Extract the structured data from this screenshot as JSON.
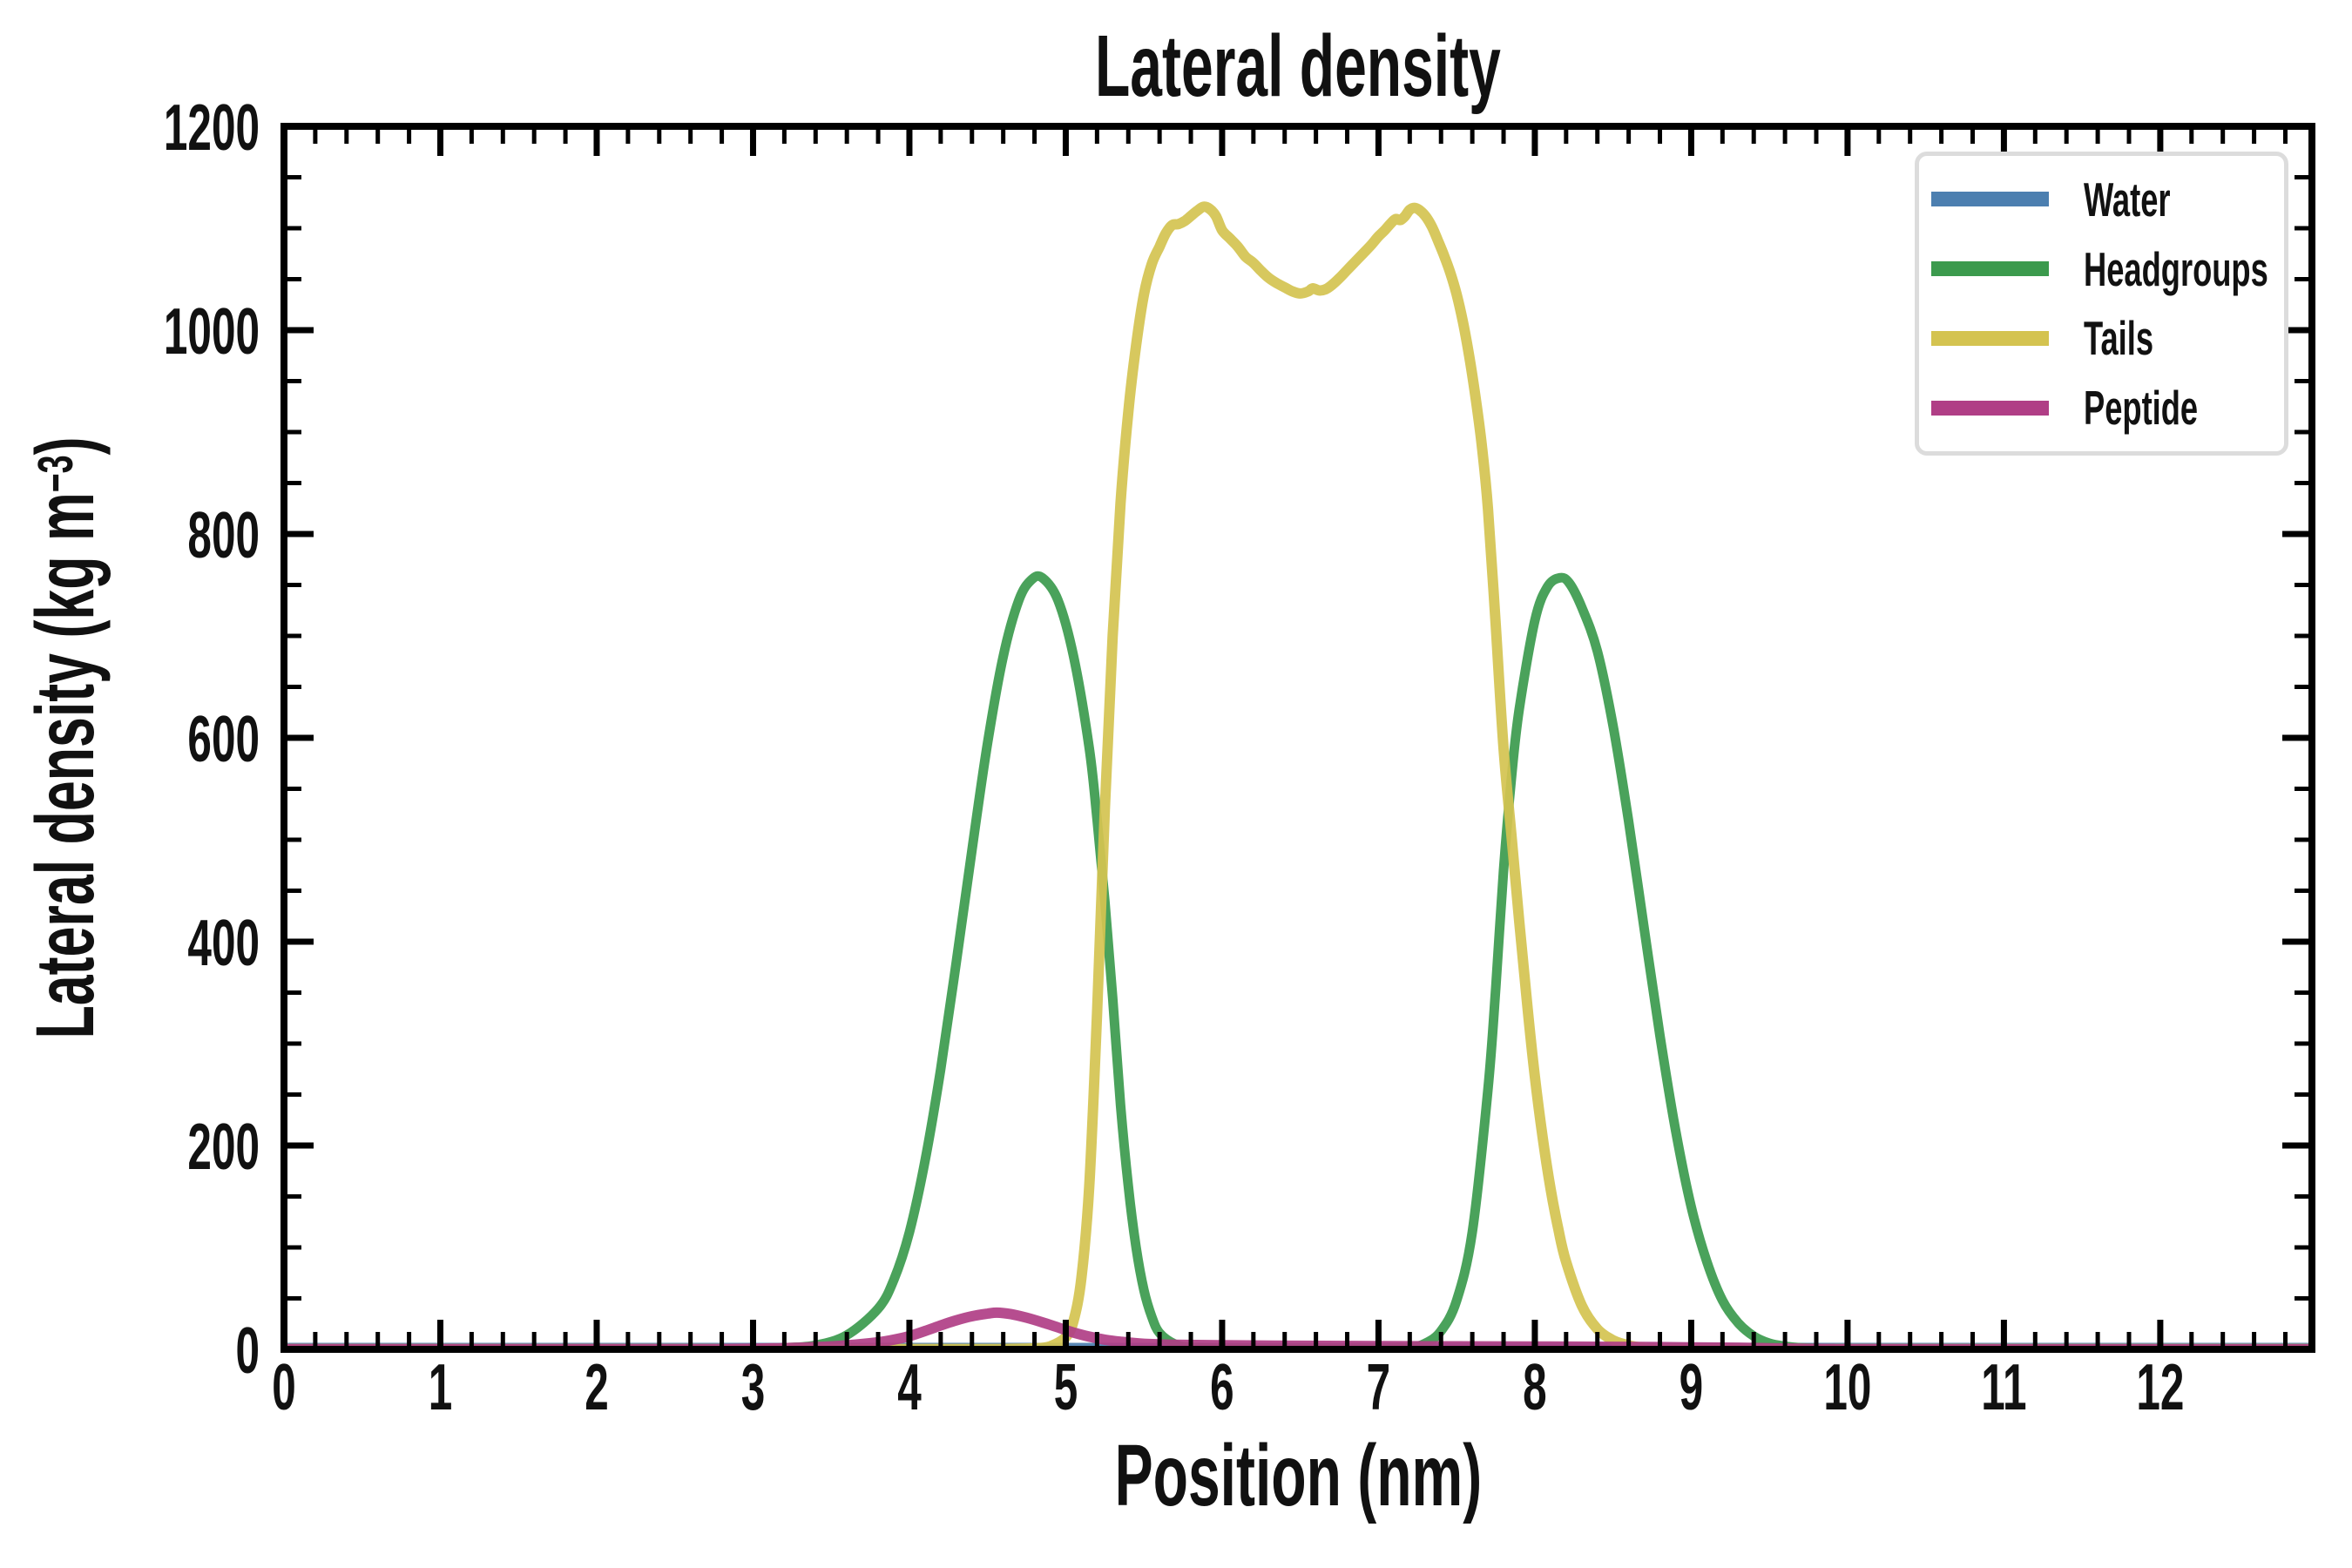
{
  "title": "Lateral density",
  "axes": {
    "xlabel": "Position (nm)",
    "ylabel": "Lateral density (kg m⁻³)",
    "ylabel_parts": {
      "pre": "Lateral density (kg m",
      "sup": "−3",
      "post": ")"
    },
    "x_ticks": [
      0,
      1,
      2,
      3,
      4,
      5,
      6,
      7,
      8,
      9,
      10,
      11,
      12
    ],
    "y_ticks": [
      0,
      200,
      400,
      600,
      800,
      1000,
      1200
    ],
    "x_minor_step": 0.2,
    "y_minor_step": 50,
    "xlim": [
      0,
      12.97
    ],
    "ylim": [
      0,
      1200
    ]
  },
  "legend": {
    "position": "upper right",
    "items": [
      {
        "label": "Water"
      },
      {
        "label": "Headgroups"
      },
      {
        "label": "Tails"
      },
      {
        "label": "Peptide"
      }
    ]
  },
  "chart_data": {
    "type": "line",
    "title": "Lateral density",
    "xlabel": "Position (nm)",
    "ylabel": "Lateral density (kg m⁻³)",
    "xlim": [
      0,
      12.97
    ],
    "ylim": [
      0,
      1200
    ],
    "grid": false,
    "legend_position": "upper right",
    "series": [
      {
        "name": "Water",
        "color": "#4C7FB0",
        "points": [
          [
            0,
            3
          ],
          [
            2,
            3
          ],
          [
            4,
            3
          ],
          [
            6,
            3
          ],
          [
            8,
            3
          ],
          [
            10,
            3
          ],
          [
            12,
            3
          ],
          [
            12.97,
            3
          ]
        ]
      },
      {
        "name": "Headgroups",
        "color": "#3B9A4D",
        "points": [
          [
            0,
            0.5
          ],
          [
            2.8,
            0.5
          ],
          [
            3.0,
            0.8
          ],
          [
            3.2,
            1.5
          ],
          [
            3.4,
            4
          ],
          [
            3.6,
            14
          ],
          [
            3.8,
            40
          ],
          [
            3.9,
            68
          ],
          [
            4.0,
            115
          ],
          [
            4.1,
            185
          ],
          [
            4.2,
            275
          ],
          [
            4.3,
            380
          ],
          [
            4.4,
            490
          ],
          [
            4.5,
            595
          ],
          [
            4.6,
            680
          ],
          [
            4.7,
            735
          ],
          [
            4.78,
            755
          ],
          [
            4.85,
            757
          ],
          [
            4.95,
            735
          ],
          [
            5.05,
            680
          ],
          [
            5.15,
            590
          ],
          [
            5.2,
            520
          ],
          [
            5.25,
            440
          ],
          [
            5.3,
            345
          ],
          [
            5.35,
            240
          ],
          [
            5.4,
            160
          ],
          [
            5.45,
            100
          ],
          [
            5.5,
            58
          ],
          [
            5.55,
            32
          ],
          [
            5.6,
            16
          ],
          [
            5.7,
            5
          ],
          [
            5.8,
            2
          ],
          [
            6.0,
            1
          ],
          [
            6.5,
            0.8
          ],
          [
            7.0,
            1
          ],
          [
            7.2,
            2
          ],
          [
            7.3,
            6
          ],
          [
            7.4,
            18
          ],
          [
            7.5,
            48
          ],
          [
            7.6,
            115
          ],
          [
            7.7,
            255
          ],
          [
            7.75,
            355
          ],
          [
            7.8,
            470
          ],
          [
            7.85,
            560
          ],
          [
            7.9,
            628
          ],
          [
            8.0,
            715
          ],
          [
            8.08,
            748
          ],
          [
            8.16,
            757
          ],
          [
            8.22,
            752
          ],
          [
            8.3,
            728
          ],
          [
            8.4,
            685
          ],
          [
            8.5,
            612
          ],
          [
            8.6,
            518
          ],
          [
            8.7,
            412
          ],
          [
            8.8,
            308
          ],
          [
            8.9,
            215
          ],
          [
            9.0,
            140
          ],
          [
            9.1,
            86
          ],
          [
            9.2,
            48
          ],
          [
            9.3,
            26
          ],
          [
            9.4,
            13
          ],
          [
            9.5,
            6
          ],
          [
            9.6,
            3
          ],
          [
            9.7,
            1.5
          ],
          [
            9.9,
            0.8
          ],
          [
            10.5,
            0.5
          ],
          [
            12.97,
            0.5
          ]
        ]
      },
      {
        "name": "Tails",
        "color": "#D4C350",
        "points": [
          [
            0,
            0.3
          ],
          [
            4.4,
            0.3
          ],
          [
            4.6,
            0.4
          ],
          [
            4.8,
            1
          ],
          [
            4.9,
            3
          ],
          [
            5.0,
            12
          ],
          [
            5.05,
            28
          ],
          [
            5.1,
            70
          ],
          [
            5.15,
            160
          ],
          [
            5.2,
            330
          ],
          [
            5.25,
            530
          ],
          [
            5.3,
            700
          ],
          [
            5.35,
            830
          ],
          [
            5.4,
            920
          ],
          [
            5.45,
            985
          ],
          [
            5.5,
            1035
          ],
          [
            5.55,
            1065
          ],
          [
            5.6,
            1082
          ],
          [
            5.64,
            1095
          ],
          [
            5.68,
            1103
          ],
          [
            5.72,
            1104
          ],
          [
            5.76,
            1107
          ],
          [
            5.8,
            1112
          ],
          [
            5.84,
            1117
          ],
          [
            5.88,
            1121
          ],
          [
            5.92,
            1119
          ],
          [
            5.96,
            1112
          ],
          [
            6.0,
            1098
          ],
          [
            6.05,
            1090
          ],
          [
            6.1,
            1082
          ],
          [
            6.15,
            1072
          ],
          [
            6.2,
            1066
          ],
          [
            6.25,
            1058
          ],
          [
            6.3,
            1051
          ],
          [
            6.35,
            1046
          ],
          [
            6.4,
            1042
          ],
          [
            6.45,
            1038
          ],
          [
            6.5,
            1036
          ],
          [
            6.55,
            1038
          ],
          [
            6.58,
            1041
          ],
          [
            6.62,
            1039
          ],
          [
            6.66,
            1040
          ],
          [
            6.7,
            1044
          ],
          [
            6.75,
            1051
          ],
          [
            6.8,
            1059
          ],
          [
            6.85,
            1067
          ],
          [
            6.9,
            1075
          ],
          [
            6.95,
            1083
          ],
          [
            7.0,
            1092
          ],
          [
            7.04,
            1098
          ],
          [
            7.08,
            1105
          ],
          [
            7.11,
            1109
          ],
          [
            7.14,
            1108
          ],
          [
            7.17,
            1112
          ],
          [
            7.2,
            1118
          ],
          [
            7.23,
            1120
          ],
          [
            7.26,
            1118
          ],
          [
            7.3,
            1112
          ],
          [
            7.34,
            1102
          ],
          [
            7.38,
            1088
          ],
          [
            7.42,
            1073
          ],
          [
            7.46,
            1056
          ],
          [
            7.5,
            1035
          ],
          [
            7.54,
            1008
          ],
          [
            7.58,
            975
          ],
          [
            7.62,
            935
          ],
          [
            7.66,
            888
          ],
          [
            7.7,
            825
          ],
          [
            7.75,
            710
          ],
          [
            7.8,
            590
          ],
          [
            7.85,
            505
          ],
          [
            7.9,
            420
          ],
          [
            7.95,
            340
          ],
          [
            8.0,
            268
          ],
          [
            8.05,
            208
          ],
          [
            8.1,
            158
          ],
          [
            8.15,
            118
          ],
          [
            8.2,
            86
          ],
          [
            8.3,
            43
          ],
          [
            8.4,
            20
          ],
          [
            8.5,
            9
          ],
          [
            8.6,
            4
          ],
          [
            8.7,
            1.5
          ],
          [
            8.8,
            0.5
          ],
          [
            9.5,
            0.3
          ],
          [
            12.97,
            0.3
          ]
        ]
      },
      {
        "name": "Peptide",
        "color": "#B03E86",
        "points": [
          [
            0,
            0.2
          ],
          [
            2.6,
            0.2
          ],
          [
            2.8,
            0.3
          ],
          [
            3.0,
            0.6
          ],
          [
            3.2,
            1.2
          ],
          [
            3.4,
            2.2
          ],
          [
            3.6,
            4
          ],
          [
            3.8,
            7
          ],
          [
            3.9,
            9.5
          ],
          [
            4.0,
            13
          ],
          [
            4.1,
            18
          ],
          [
            4.2,
            23.5
          ],
          [
            4.3,
            28.5
          ],
          [
            4.4,
            32.5
          ],
          [
            4.5,
            35
          ],
          [
            4.56,
            36
          ],
          [
            4.65,
            34.5
          ],
          [
            4.75,
            31
          ],
          [
            4.85,
            26.5
          ],
          [
            4.95,
            21.5
          ],
          [
            5.05,
            16.5
          ],
          [
            5.15,
            12.5
          ],
          [
            5.25,
            9.5
          ],
          [
            5.35,
            7.5
          ],
          [
            5.5,
            5.5
          ],
          [
            5.7,
            4.5
          ],
          [
            6.0,
            4
          ],
          [
            6.5,
            3.5
          ],
          [
            7.0,
            3.2
          ],
          [
            7.5,
            3
          ],
          [
            8.0,
            2.8
          ],
          [
            8.5,
            2.5
          ],
          [
            9.0,
            2
          ],
          [
            9.3,
            1.6
          ],
          [
            9.5,
            1.1
          ],
          [
            9.7,
            0.6
          ],
          [
            9.9,
            0.3
          ],
          [
            10.2,
            0.15
          ],
          [
            12.97,
            0.1
          ]
        ]
      }
    ]
  }
}
